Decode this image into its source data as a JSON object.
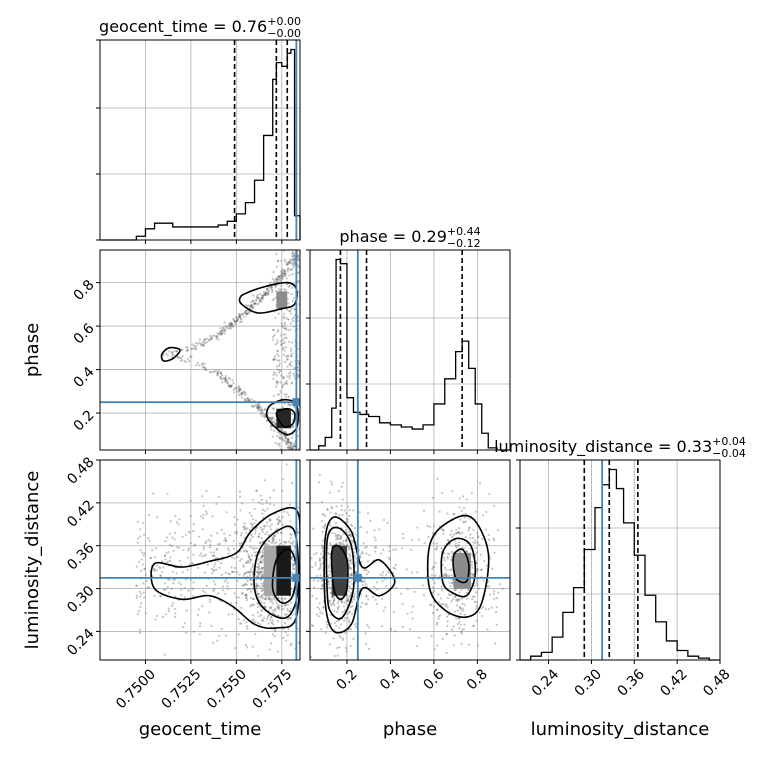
{
  "chart_data": {
    "type": "corner",
    "colors": {
      "truth": "#4682b4",
      "hist": "#000000",
      "points": "#555555"
    },
    "grid": true,
    "parameters": [
      {
        "key": "geocent_time",
        "label": "geocent_time",
        "range": [
          0.7475,
          0.7585
        ],
        "ticks": [
          0.75,
          0.7525,
          0.755,
          0.7575
        ],
        "tick_labels": [
          "0.7500",
          "0.7525",
          "0.7550",
          "0.7575"
        ],
        "truth": 0.7583,
        "quantiles": [
          0.7549,
          0.7572,
          0.7578
        ],
        "title_value": "0.76",
        "title_plus": "+0.00",
        "title_minus": "−0.00"
      },
      {
        "key": "phase",
        "label": "phase",
        "range": [
          0.03,
          0.95
        ],
        "ticks": [
          0.2,
          0.4,
          0.6,
          0.8
        ],
        "tick_labels": [
          "0.2",
          "0.4",
          "0.6",
          "0.8"
        ],
        "truth": 0.25,
        "quantiles": [
          0.17,
          0.29,
          0.73
        ],
        "title_value": "0.29",
        "title_plus": "+0.44",
        "title_minus": "−0.12"
      },
      {
        "key": "luminosity_distance",
        "label": "luminosity_distance",
        "range": [
          0.2,
          0.48
        ],
        "ticks": [
          0.24,
          0.3,
          0.36,
          0.42,
          0.48
        ],
        "tick_labels": [
          "0.24",
          "0.30",
          "0.36",
          "0.42",
          "0.48"
        ],
        "truth": 0.315,
        "quantiles": [
          0.29,
          0.325,
          0.365
        ],
        "title_value": "0.33",
        "title_plus": "+0.04",
        "title_minus": "−0.04"
      }
    ],
    "histograms": {
      "geocent_time": {
        "edges": [
          0.7475,
          0.7495,
          0.75,
          0.7505,
          0.751,
          0.7515,
          0.752,
          0.7525,
          0.753,
          0.7535,
          0.754,
          0.7545,
          0.755,
          0.7555,
          0.756,
          0.7565,
          0.757,
          0.7572,
          0.7575,
          0.7578,
          0.758,
          0.7582,
          0.7585
        ],
        "counts": [
          0,
          2,
          6,
          9,
          9,
          7,
          7,
          7,
          7,
          7,
          8,
          10,
          14,
          20,
          32,
          56,
          86,
          95,
          93,
          100,
          102,
          13
        ]
      },
      "phase": {
        "edges": [
          0.03,
          0.07,
          0.1,
          0.13,
          0.15,
          0.17,
          0.2,
          0.23,
          0.26,
          0.3,
          0.35,
          0.4,
          0.45,
          0.5,
          0.55,
          0.6,
          0.65,
          0.7,
          0.73,
          0.76,
          0.79,
          0.82,
          0.85,
          0.89,
          0.95
        ],
        "counts": [
          0,
          2,
          6,
          20,
          91,
          89,
          25,
          18,
          17,
          16,
          13,
          12,
          11,
          10,
          12,
          22,
          34,
          47,
          52,
          39,
          22,
          8,
          1,
          0
        ]
      },
      "luminosity_distance": {
        "edges": [
          0.2,
          0.215,
          0.23,
          0.245,
          0.26,
          0.275,
          0.29,
          0.305,
          0.315,
          0.325,
          0.335,
          0.345,
          0.36,
          0.375,
          0.39,
          0.405,
          0.42,
          0.435,
          0.45,
          0.465,
          0.48
        ],
        "counts": [
          0,
          2,
          4,
          12,
          25,
          38,
          58,
          80,
          92,
          100,
          90,
          72,
          55,
          34,
          20,
          10,
          5,
          2,
          1,
          0
        ]
      }
    },
    "contours": [
      {
        "x": "geocent_time",
        "y": "phase",
        "levels": [
          [
            [
              0.7555,
              0.75
            ],
            [
              0.7565,
              0.78
            ],
            [
              0.7578,
              0.8
            ],
            [
              0.7583,
              0.77
            ],
            [
              0.7582,
              0.7
            ],
            [
              0.7575,
              0.68
            ],
            [
              0.7562,
              0.66
            ],
            [
              0.7553,
              0.7
            ],
            [
              0.7552,
              0.73
            ]
          ],
          [
            [
              0.7568,
              0.23
            ],
            [
              0.7575,
              0.26
            ],
            [
              0.7582,
              0.25
            ],
            [
              0.7584,
              0.2
            ],
            [
              0.7583,
              0.13
            ],
            [
              0.7578,
              0.1
            ],
            [
              0.7572,
              0.13
            ],
            [
              0.7567,
              0.18
            ]
          ],
          [
            [
              0.7509,
              0.47
            ],
            [
              0.7513,
              0.5
            ],
            [
              0.7519,
              0.49
            ],
            [
              0.7515,
              0.45
            ],
            [
              0.751,
              0.44
            ]
          ],
          [
            [
              0.7572,
              0.2
            ],
            [
              0.7578,
              0.22
            ],
            [
              0.7582,
              0.2
            ],
            [
              0.7581,
              0.15
            ],
            [
              0.7576,
              0.14
            ]
          ]
        ]
      },
      {
        "x": "geocent_time",
        "y": "luminosity_distance",
        "levels": [
          [
            [
              0.7505,
              0.3
            ],
            [
              0.7505,
              0.335
            ],
            [
              0.752,
              0.33
            ],
            [
              0.7535,
              0.338
            ],
            [
              0.755,
              0.35
            ],
            [
              0.7558,
              0.38
            ],
            [
              0.757,
              0.405
            ],
            [
              0.7583,
              0.41
            ],
            [
              0.7585,
              0.36
            ],
            [
              0.7583,
              0.26
            ],
            [
              0.7572,
              0.245
            ],
            [
              0.756,
              0.25
            ],
            [
              0.7548,
              0.275
            ],
            [
              0.7535,
              0.29
            ],
            [
              0.752,
              0.285
            ]
          ],
          [
            [
              0.756,
              0.3
            ],
            [
              0.7562,
              0.35
            ],
            [
              0.7572,
              0.38
            ],
            [
              0.7582,
              0.38
            ],
            [
              0.7584,
              0.3
            ],
            [
              0.7578,
              0.26
            ],
            [
              0.7566,
              0.27
            ]
          ],
          [
            [
              0.757,
              0.3
            ],
            [
              0.7572,
              0.34
            ],
            [
              0.7579,
              0.355
            ],
            [
              0.7583,
              0.33
            ],
            [
              0.7581,
              0.29
            ],
            [
              0.7575,
              0.28
            ]
          ]
        ]
      },
      {
        "x": "phase",
        "y": "luminosity_distance",
        "levels": [
          [
            [
              0.1,
              0.28
            ],
            [
              0.1,
              0.37
            ],
            [
              0.14,
              0.4
            ],
            [
              0.22,
              0.38
            ],
            [
              0.27,
              0.33
            ],
            [
              0.35,
              0.34
            ],
            [
              0.42,
              0.31
            ],
            [
              0.35,
              0.29
            ],
            [
              0.27,
              0.3
            ],
            [
              0.22,
              0.25
            ],
            [
              0.14,
              0.24
            ]
          ],
          [
            [
              0.11,
              0.29
            ],
            [
              0.11,
              0.37
            ],
            [
              0.16,
              0.385
            ],
            [
              0.22,
              0.36
            ],
            [
              0.23,
              0.3
            ],
            [
              0.18,
              0.26
            ],
            [
              0.13,
              0.265
            ]
          ],
          [
            [
              0.14,
              0.3
            ],
            [
              0.13,
              0.35
            ],
            [
              0.16,
              0.36
            ],
            [
              0.2,
              0.34
            ],
            [
              0.2,
              0.3
            ],
            [
              0.17,
              0.285
            ]
          ],
          [
            [
              0.58,
              0.3
            ],
            [
              0.58,
              0.36
            ],
            [
              0.65,
              0.39
            ],
            [
              0.77,
              0.4
            ],
            [
              0.85,
              0.35
            ],
            [
              0.82,
              0.28
            ],
            [
              0.75,
              0.26
            ],
            [
              0.65,
              0.27
            ]
          ],
          [
            [
              0.64,
              0.31
            ],
            [
              0.64,
              0.35
            ],
            [
              0.7,
              0.37
            ],
            [
              0.77,
              0.36
            ],
            [
              0.79,
              0.32
            ],
            [
              0.75,
              0.29
            ],
            [
              0.68,
              0.295
            ]
          ],
          [
            [
              0.7,
              0.315
            ],
            [
              0.69,
              0.345
            ],
            [
              0.73,
              0.355
            ],
            [
              0.76,
              0.335
            ],
            [
              0.75,
              0.31
            ]
          ]
        ]
      }
    ],
    "density_cells": [
      {
        "x": "geocent_time",
        "y": "phase",
        "x0": 0.7572,
        "x1": 0.7578,
        "y0": 0.68,
        "y1": 0.76,
        "shade": 0.45
      },
      {
        "x": "geocent_time",
        "y": "phase",
        "x0": 0.7572,
        "x1": 0.758,
        "y0": 0.13,
        "y1": 0.22,
        "shade": 0.85
      },
      {
        "x": "geocent_time",
        "y": "luminosity_distance",
        "x0": 0.7565,
        "x1": 0.7572,
        "y0": 0.29,
        "y1": 0.36,
        "shade": 0.35
      },
      {
        "x": "geocent_time",
        "y": "luminosity_distance",
        "x0": 0.7572,
        "x1": 0.758,
        "y0": 0.29,
        "y1": 0.36,
        "shade": 0.9
      },
      {
        "x": "phase",
        "y": "luminosity_distance",
        "x0": 0.13,
        "x1": 0.2,
        "y0": 0.29,
        "y1": 0.36,
        "shade": 0.75
      },
      {
        "x": "phase",
        "y": "luminosity_distance",
        "x0": 0.69,
        "x1": 0.77,
        "y0": 0.3,
        "y1": 0.35,
        "shade": 0.45
      }
    ]
  }
}
